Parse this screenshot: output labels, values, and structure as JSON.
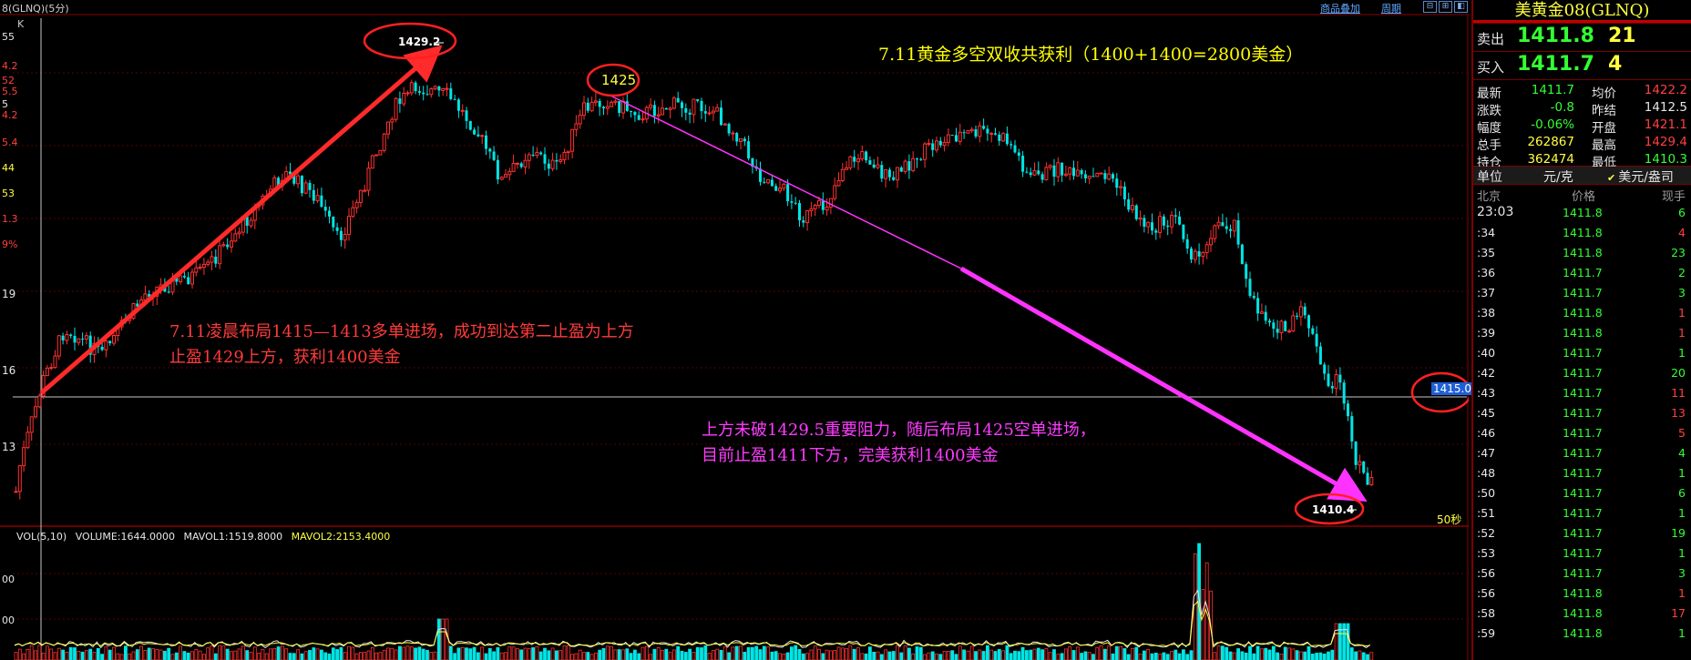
{
  "top_bar": {
    "title": "8(GLNQ)(5分)",
    "link_overlay": "商品叠加",
    "link_cycle": "周期",
    "buttons": [
      "⊟",
      "⊞",
      "◧"
    ]
  },
  "axis": {
    "left_price_labels": [
      "19",
      "16",
      "13"
    ],
    "left_vol_labels": [
      "00",
      "00"
    ],
    "left_fragments": [
      "55",
      "4.2",
      "52",
      "5.5",
      "5",
      "4.2",
      "5.4",
      "44",
      "53",
      "1.3",
      "9%"
    ]
  },
  "chart": {
    "k_marker": "K",
    "high_label": "1429.2",
    "mid_label": "1425",
    "low_label": "1410.4",
    "price_line_label": "1415.0",
    "interval_label": "50秒",
    "headline": "7.11黄金多空双收共获利（1400+1400=2800美金）",
    "long_note": [
      "7.11凌晨布局1415—1413多单进场，成功到达第二止盈为上方",
      "止盈1429上方，获利1400美金"
    ],
    "short_note": [
      "上方未破1429.5重要阻力，随后布局1425空单进场，",
      "目前止盈1411下方，完美获利1400美金"
    ],
    "colors": {
      "up": "#ff3030",
      "down": "#00e5e5",
      "long_arrow": "#ff2a2a",
      "short_arrow": "#ff33ff",
      "background": "#000000"
    }
  },
  "volume": {
    "label": "VOL(5,10)",
    "volume": "VOLUME:1644.0000",
    "mavol1": "MAVOL1:1519.8000",
    "mavol2": "MAVOL2:2153.4000"
  },
  "panel": {
    "title": "美黄金08(GLNQ)",
    "sell": {
      "label": "卖出",
      "price": "1411.8",
      "volume": "21"
    },
    "buy": {
      "label": "买入",
      "price": "1411.7",
      "volume": "4"
    },
    "stats": [
      {
        "k1": "最新",
        "v1": "1411.7",
        "c1": "green",
        "k2": "均价",
        "v2": "1422.2",
        "c2": "red"
      },
      {
        "k1": "涨跌",
        "v1": "-0.8",
        "c1": "green",
        "k2": "昨结",
        "v2": "1412.5",
        "c2": "white"
      },
      {
        "k1": "幅度",
        "v1": "-0.06%",
        "c1": "green",
        "k2": "开盘",
        "v2": "1421.1",
        "c2": "red"
      },
      {
        "k1": "总手",
        "v1": "262867",
        "c1": "yellow",
        "k2": "最高",
        "v2": "1429.4",
        "c2": "red"
      },
      {
        "k1": "持仓",
        "v1": "362474",
        "c1": "yellow",
        "k2": "最低",
        "v2": "1410.3",
        "c2": "green"
      }
    ],
    "unit": {
      "label": "单位",
      "value": "元/克",
      "option": "美元/盎司"
    },
    "tick_header": {
      "time": "北京",
      "price": "价格",
      "qty": "现手"
    },
    "ticks": [
      {
        "t": "23:03",
        "p": "1411.8",
        "q": "6",
        "c": "green"
      },
      {
        "t": ":34",
        "p": "1411.8",
        "q": "4",
        "c": "red"
      },
      {
        "t": ":35",
        "p": "1411.8",
        "q": "23",
        "c": "green"
      },
      {
        "t": ":36",
        "p": "1411.7",
        "q": "2",
        "c": "green"
      },
      {
        "t": ":37",
        "p": "1411.7",
        "q": "3",
        "c": "green"
      },
      {
        "t": ":38",
        "p": "1411.8",
        "q": "1",
        "c": "red"
      },
      {
        "t": ":39",
        "p": "1411.8",
        "q": "1",
        "c": "red"
      },
      {
        "t": ":40",
        "p": "1411.7",
        "q": "1",
        "c": "green"
      },
      {
        "t": ":42",
        "p": "1411.7",
        "q": "20",
        "c": "green"
      },
      {
        "t": ":43",
        "p": "1411.7",
        "q": "11",
        "c": "red"
      },
      {
        "t": ":45",
        "p": "1411.7",
        "q": "13",
        "c": "red"
      },
      {
        "t": ":46",
        "p": "1411.7",
        "q": "5",
        "c": "red"
      },
      {
        "t": ":47",
        "p": "1411.7",
        "q": "4",
        "c": "green"
      },
      {
        "t": ":48",
        "p": "1411.7",
        "q": "1",
        "c": "green"
      },
      {
        "t": ":50",
        "p": "1411.7",
        "q": "6",
        "c": "green"
      },
      {
        "t": ":51",
        "p": "1411.7",
        "q": "1",
        "c": "green"
      },
      {
        "t": ":52",
        "p": "1411.7",
        "q": "19",
        "c": "green"
      },
      {
        "t": ":53",
        "p": "1411.7",
        "q": "1",
        "c": "green"
      },
      {
        "t": ":56",
        "p": "1411.7",
        "q": "3",
        "c": "green"
      },
      {
        "t": ":56",
        "p": "1411.8",
        "q": "1",
        "c": "red"
      },
      {
        "t": ":58",
        "p": "1411.8",
        "q": "17",
        "c": "red"
      },
      {
        "t": ":59",
        "p": "1411.8",
        "q": "1",
        "c": "green"
      }
    ]
  }
}
